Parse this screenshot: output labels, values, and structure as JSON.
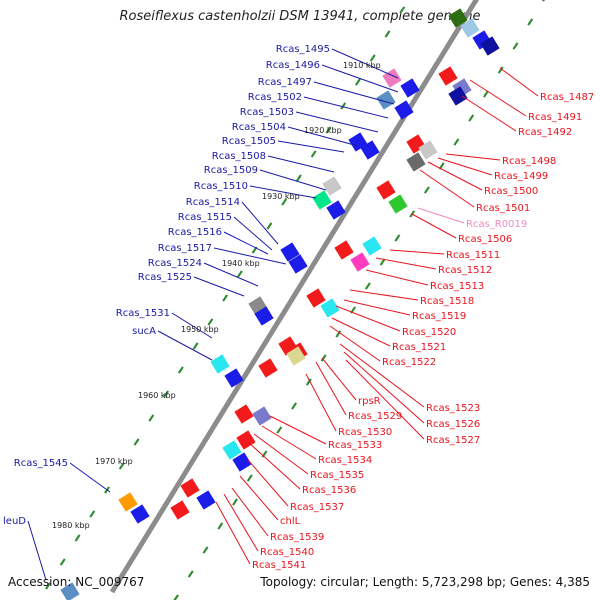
{
  "title": "Roseiflexus castenholzii DSM 13941, complete genome",
  "footer": {
    "accession": "Accession: NC_009767",
    "topology": "Topology: circular; Length: 5,723,298 bp; Genes: 4,385"
  },
  "colors": {
    "backbone": "#8c8c8c",
    "tick": "#2e8b2e",
    "left_label": "#1a1aa6",
    "right_label": "#e8141e",
    "rna_label": "#f08cc0",
    "blue": "#1c1ce8",
    "red": "#f21a1a"
  },
  "scale_labels": [
    "1910 kbp",
    "1920 kbp",
    "1930 kbp",
    "1940 kbp",
    "1950 kbp",
    "1960 kbp",
    "1970 kbp",
    "1980 kbp"
  ],
  "left_labels": [
    "Rcas_1495",
    "Rcas_1496",
    "Rcas_1497",
    "Rcas_1502",
    "Rcas_1503",
    "Rcas_1504",
    "Rcas_1505",
    "Rcas_1508",
    "Rcas_1509",
    "Rcas_1510",
    "Rcas_1514",
    "Rcas_1515",
    "Rcas_1516",
    "Rcas_1517",
    "Rcas_1524",
    "Rcas_1525",
    "Rcas_1531",
    "sucA",
    "Rcas_1545",
    "leuD"
  ],
  "right_labels": [
    "Rcas_1487",
    "Rcas_1491",
    "Rcas_1492",
    "Rcas_1498",
    "Rcas_1499",
    "Rcas_1500",
    "Rcas_1501",
    "Rcas_R0019",
    "Rcas_1506",
    "Rcas_1511",
    "Rcas_1512",
    "Rcas_1513",
    "Rcas_1518",
    "Rcas_1519",
    "Rcas_1520",
    "Rcas_1521",
    "Rcas_1522",
    "Rcas_1523",
    "rpsR",
    "Rcas_1529",
    "Rcas_1526",
    "Rcas_1530",
    "Rcas_1527",
    "Rcas_1533",
    "Rcas_1534",
    "Rcas_1535",
    "Rcas_1536",
    "Rcas_1537",
    "chlL",
    "Rcas_1539",
    "Rcas_1540",
    "Rcas_1541"
  ]
}
